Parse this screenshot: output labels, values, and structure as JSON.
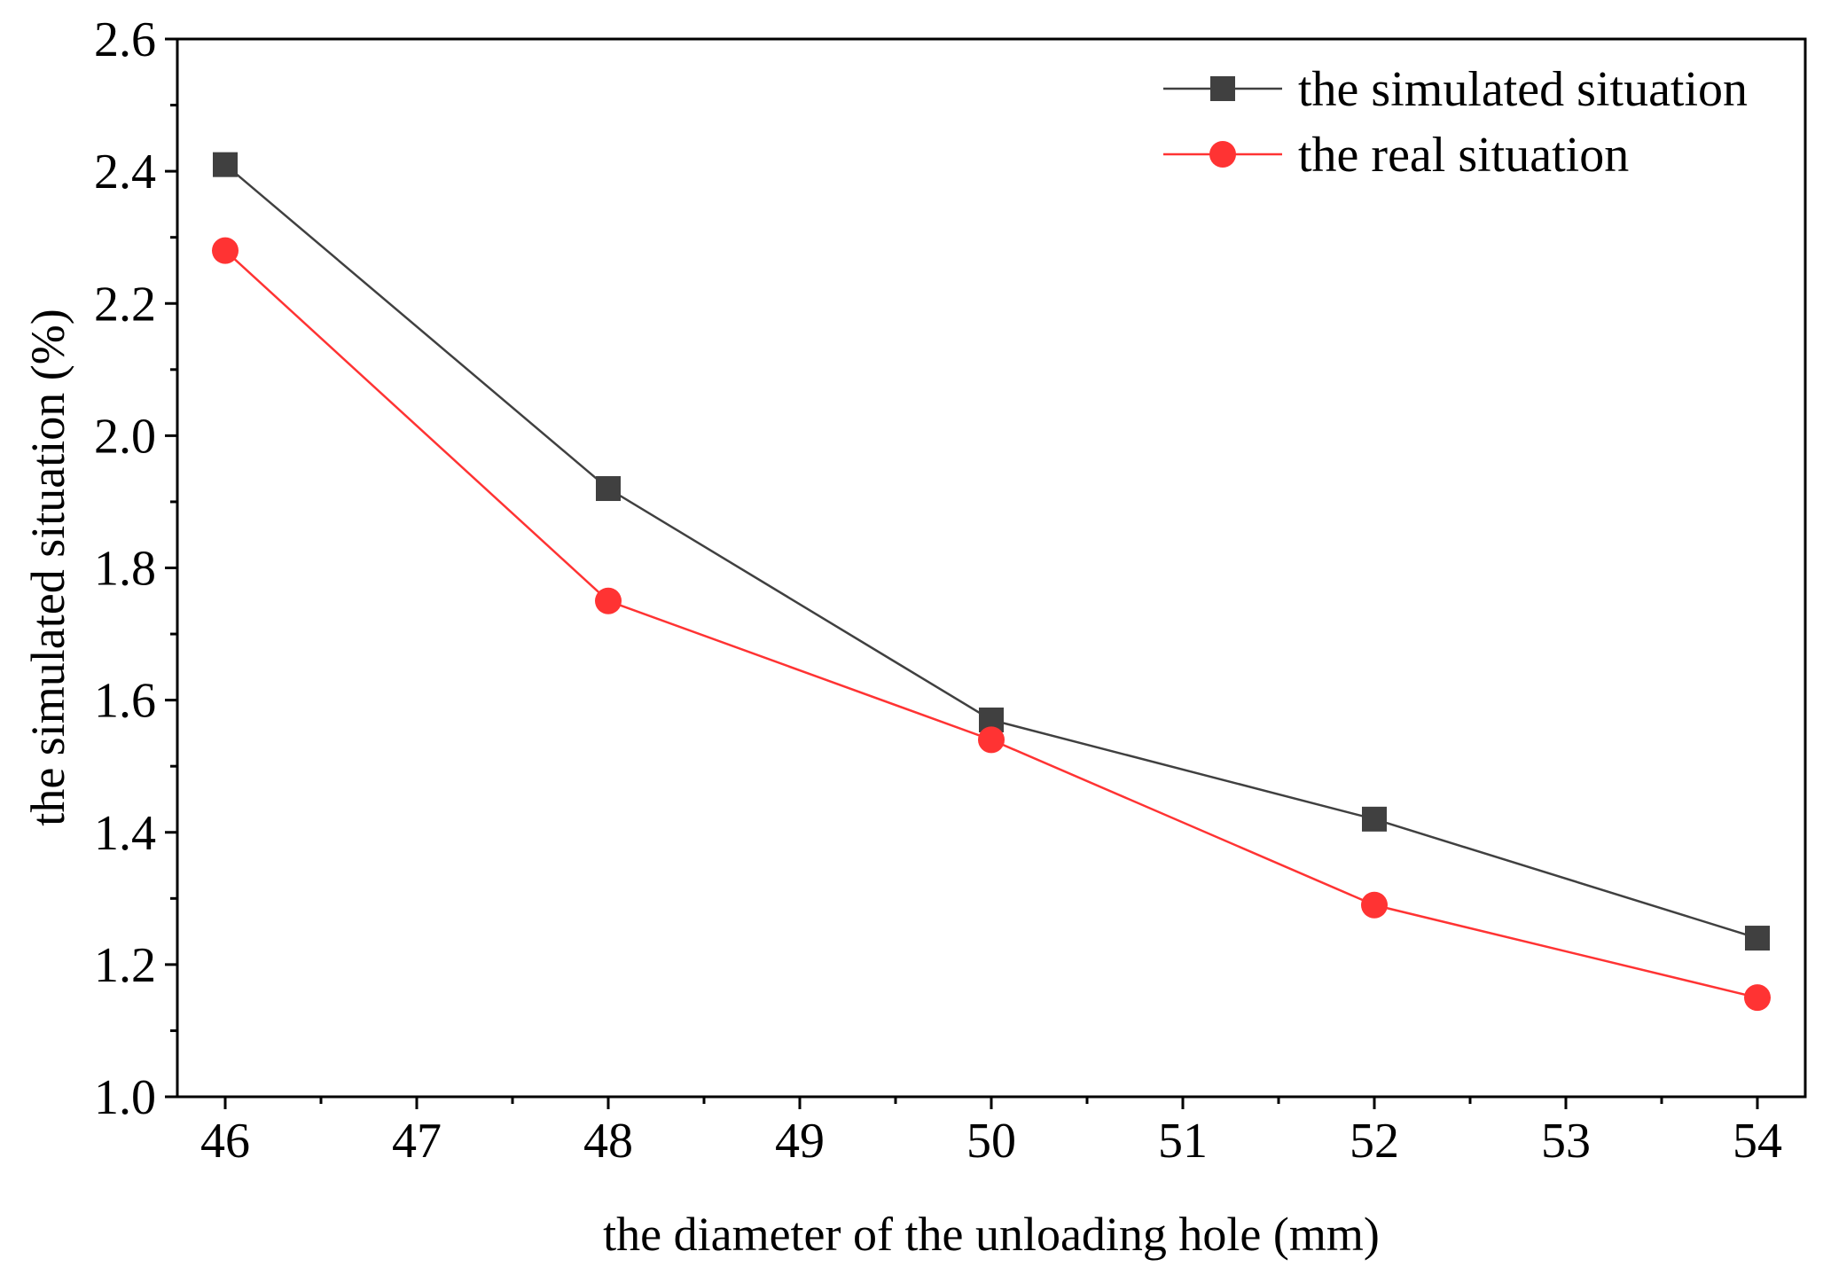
{
  "chart_data": {
    "type": "line",
    "title": "",
    "xlabel": "the diameter of the unloading hole (mm)",
    "ylabel": "the simulated situation (%)",
    "xlim": [
      45.75,
      54.25
    ],
    "ylim": [
      1.0,
      2.6
    ],
    "x_ticks": [
      46,
      47,
      48,
      49,
      50,
      51,
      52,
      53,
      54
    ],
    "x_tick_labels": [
      "46",
      "47",
      "48",
      "49",
      "50",
      "51",
      "52",
      "53",
      "54"
    ],
    "y_ticks": [
      1.0,
      1.2,
      1.4,
      1.6,
      1.8,
      2.0,
      2.2,
      2.4,
      2.6
    ],
    "y_tick_labels": [
      "1.0",
      "1.2",
      "1.4",
      "1.6",
      "1.8",
      "2.0",
      "2.2",
      "2.4",
      "2.6"
    ],
    "grid": false,
    "legend_position": "top-right",
    "series": [
      {
        "name": "the simulated situation",
        "marker": "square",
        "color": "#404040",
        "x": [
          46,
          48,
          50,
          52,
          54
        ],
        "values": [
          2.41,
          1.92,
          1.57,
          1.42,
          1.24
        ]
      },
      {
        "name": "the real situation",
        "marker": "circle",
        "color": "#ff3333",
        "x": [
          46,
          48,
          50,
          52,
          54
        ],
        "values": [
          2.28,
          1.75,
          1.54,
          1.29,
          1.15
        ]
      }
    ]
  }
}
